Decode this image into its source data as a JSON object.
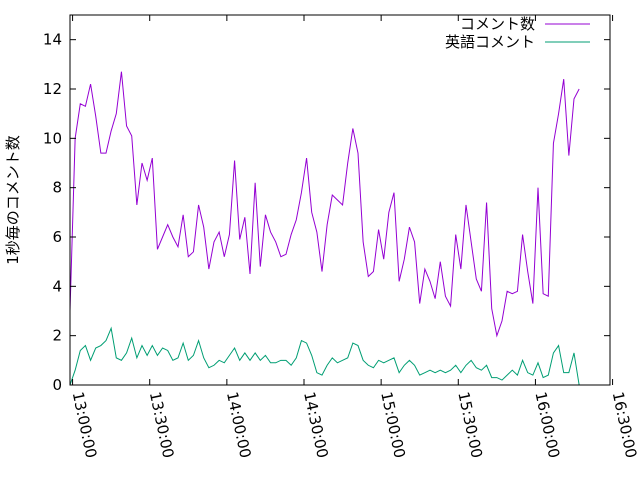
{
  "chart_data": {
    "type": "line",
    "title": "",
    "xlabel": "",
    "ylabel": "1秒毎のコメント数",
    "ylim": [
      0,
      15
    ],
    "xlim": [
      0,
      12600
    ],
    "yticks": [
      "0",
      "2",
      "4",
      "6",
      "8",
      "10",
      "12",
      "14"
    ],
    "xticks": [
      "13:00:00",
      "13:30:00",
      "14:00:00",
      "14:30:00",
      "15:00:00",
      "15:30:00",
      "16:00:00",
      "16:30:00"
    ],
    "x_interval_seconds": 120,
    "x_start": "12:59:00",
    "grid": false,
    "legend_position": "top-right",
    "series": [
      {
        "name": "コメント数",
        "color": "#9400d3",
        "values": [
          3.0,
          10.0,
          11.4,
          11.3,
          12.2,
          10.9,
          9.4,
          9.4,
          10.3,
          11.0,
          12.7,
          10.5,
          10.1,
          7.3,
          9.0,
          8.3,
          9.2,
          5.5,
          6.0,
          6.5,
          6.0,
          5.6,
          6.9,
          5.2,
          5.4,
          7.3,
          6.4,
          4.7,
          5.8,
          6.2,
          5.2,
          6.1,
          9.1,
          5.9,
          6.8,
          4.5,
          8.2,
          4.8,
          6.9,
          6.2,
          5.8,
          5.2,
          5.3,
          6.1,
          6.7,
          7.8,
          9.2,
          7.0,
          6.2,
          4.6,
          6.5,
          7.7,
          7.5,
          7.3,
          9.0,
          10.4,
          9.4,
          5.8,
          4.4,
          4.6,
          6.3,
          5.1,
          7.0,
          7.8,
          4.2,
          5.1,
          6.4,
          5.8,
          3.3,
          4.7,
          4.2,
          3.5,
          5.0,
          3.6,
          3.2,
          6.1,
          4.7,
          7.3,
          5.8,
          4.3,
          3.8,
          7.4,
          3.1,
          2.0,
          2.6,
          3.8,
          3.7,
          3.8,
          6.1,
          4.6,
          3.3,
          8.0,
          3.7,
          3.6,
          9.8,
          11.0,
          12.4,
          9.3,
          11.6,
          12.0
        ]
      },
      {
        "name": "英語コメント",
        "color": "#009e73",
        "values": [
          0.0,
          0.6,
          1.4,
          1.6,
          1.0,
          1.5,
          1.6,
          1.8,
          2.3,
          1.1,
          1.0,
          1.3,
          1.9,
          1.1,
          1.6,
          1.2,
          1.6,
          1.2,
          1.5,
          1.4,
          1.0,
          1.1,
          1.7,
          1.0,
          1.2,
          1.8,
          1.1,
          0.7,
          0.8,
          1.0,
          0.9,
          1.2,
          1.5,
          1.0,
          1.3,
          1.0,
          1.3,
          1.0,
          1.2,
          0.9,
          0.9,
          1.0,
          1.0,
          0.8,
          1.1,
          1.8,
          1.7,
          1.2,
          0.5,
          0.4,
          0.8,
          1.1,
          0.9,
          1.0,
          1.1,
          1.7,
          1.6,
          1.0,
          0.8,
          0.7,
          1.0,
          0.9,
          1.0,
          1.1,
          0.5,
          0.8,
          1.0,
          0.8,
          0.4,
          0.5,
          0.6,
          0.5,
          0.6,
          0.5,
          0.6,
          0.8,
          0.5,
          0.8,
          1.0,
          0.7,
          0.6,
          0.8,
          0.3,
          0.3,
          0.2,
          0.4,
          0.6,
          0.4,
          1.0,
          0.5,
          0.4,
          0.9,
          0.3,
          0.4,
          1.3,
          1.6,
          0.5,
          0.5,
          1.3,
          0.0
        ]
      }
    ]
  }
}
